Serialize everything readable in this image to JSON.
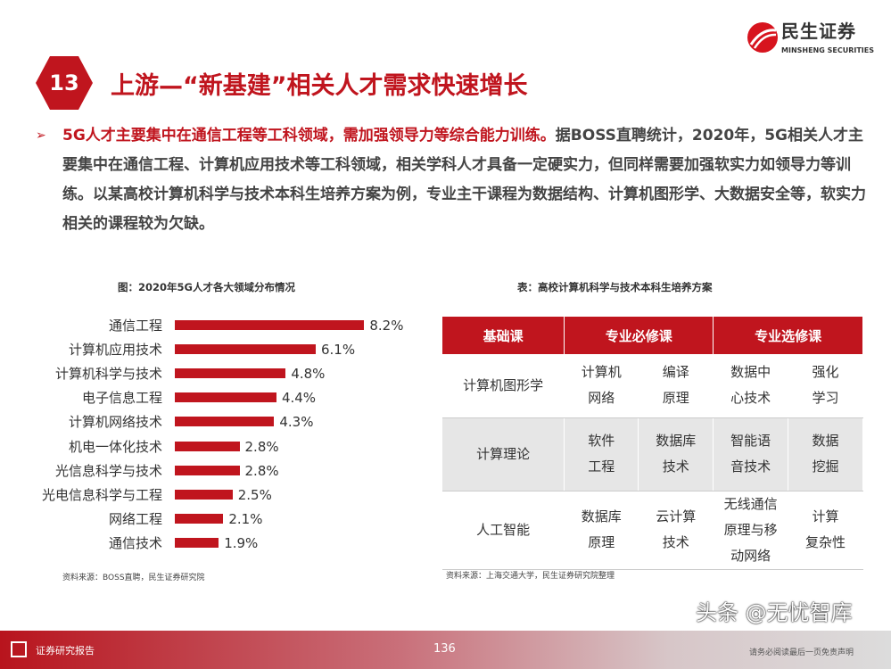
{
  "slide": {
    "number": "13",
    "title": "上游—“新基建”相关人才需求快速增长"
  },
  "logo": {
    "cn": "民生证券",
    "en": "MINSHENG SECURITIES"
  },
  "bullet": {
    "highlight": "5G人才主要集中在通信工程等工科领域，需加强领导力等综合能力训练。",
    "text": "据BOSS直聘统计，2020年，5G相关人才主要集中在通信工程、计算机应用技术等工科领域，相关学科人才具备一定硬实力，但同样需要加强软实力如领导力等训练。以某高校计算机科学与技术本科生培养方案为例，专业主干课程为数据结构、计算机图形学、大数据安全等，软实力相关的课程较为欠缺。"
  },
  "chart_data": {
    "type": "bar",
    "orientation": "horizontal",
    "title": "图：2020年5G人才各大领域分布情况",
    "categories": [
      "通信工程",
      "计算机应用技术",
      "计算机科学与技术",
      "电子信息工程",
      "计算机网络技术",
      "机电一体化技术",
      "光信息科学与技术",
      "光电信息科学与工程",
      "网络工程",
      "通信技术"
    ],
    "values": [
      8.2,
      6.1,
      4.8,
      4.4,
      4.3,
      2.8,
      2.8,
      2.5,
      2.1,
      1.9
    ],
    "labels": [
      "8.2%",
      "6.1%",
      "4.8%",
      "4.4%",
      "4.3%",
      "2.8%",
      "2.8%",
      "2.5%",
      "2.1%",
      "1.9%"
    ],
    "color": "#c0151e",
    "source": "资料来源：BOSS直聘，民生证券研究院"
  },
  "table": {
    "caption": "表：高校计算机科学与技术本科生培养方案",
    "headers": [
      "基础课",
      "专业必修课",
      "专业选修课"
    ],
    "rows": [
      [
        "计算机图形学",
        "计算机\n网络",
        "编译\n原理",
        "数据中\n心技术",
        "强化\n学习"
      ],
      [
        "计算理论",
        "软件\n工程",
        "数据库\n技术",
        "智能语\n音技术",
        "数据\n挖掘"
      ],
      [
        "人工智能",
        "数据库\n原理",
        "云计算\n技术",
        "无线通信\n原理与移\n动网络",
        "计算\n复杂性"
      ]
    ],
    "source": "资料来源：上海交通大学，民生证券研究院整理"
  },
  "footer": {
    "label": "证券研究报告",
    "page": "136",
    "disclaimer": "请务必阅读最后一页免责声明",
    "watermark": "头条 @无忧智库"
  },
  "colors": {
    "accent": "#c0151e"
  }
}
